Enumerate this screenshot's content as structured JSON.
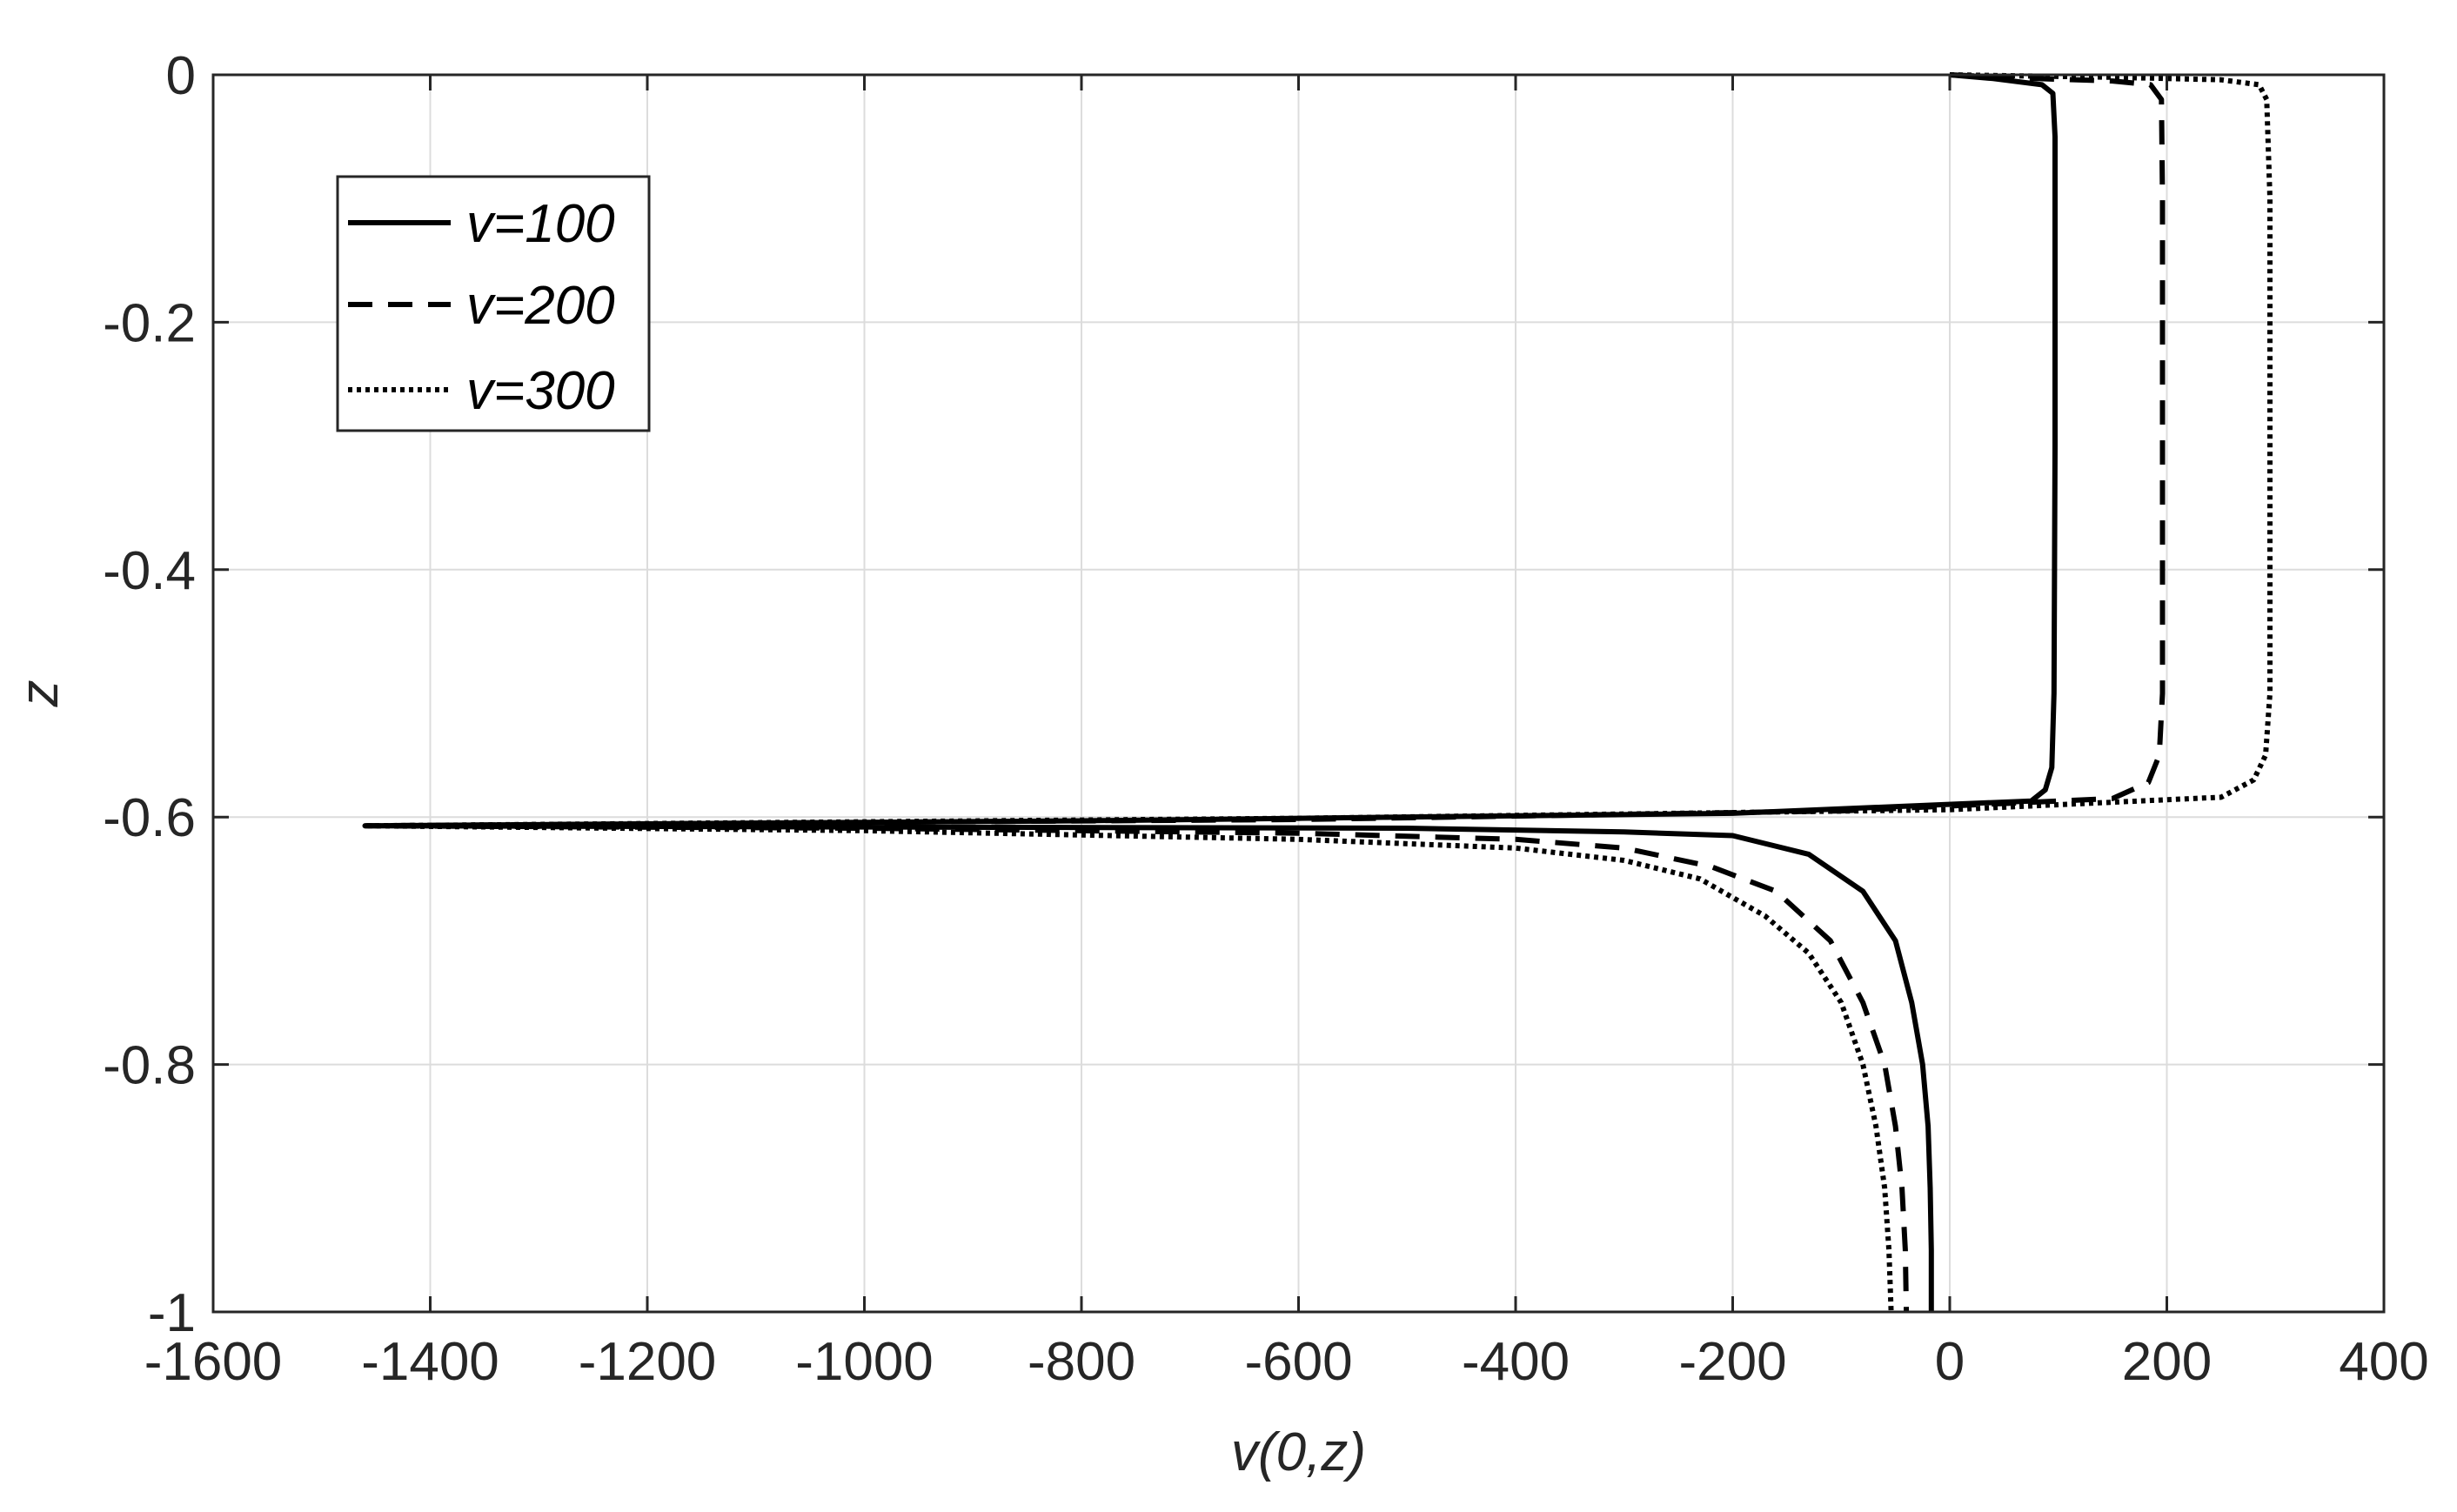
{
  "chart_data": {
    "type": "line",
    "xlabel": "v(0,z)",
    "ylabel": "z",
    "xlim": [
      -1600,
      400
    ],
    "ylim": [
      -1,
      0
    ],
    "xticks": [
      -1600,
      -1400,
      -1200,
      -1000,
      -800,
      -600,
      -400,
      -200,
      0,
      200,
      400
    ],
    "yticks": [
      0,
      -0.2,
      -0.4,
      -0.6,
      -0.8,
      -1
    ],
    "xtick_labels": [
      "-1600",
      "-1400",
      "-1200",
      "-1000",
      "-800",
      "-600",
      "-400",
      "-200",
      "0",
      "200",
      "400"
    ],
    "ytick_labels": [
      "0",
      "-0.2",
      "-0.4",
      "-0.6",
      "-0.8",
      "-1"
    ],
    "grid": true,
    "legend_position": "top-left",
    "series": [
      {
        "name": "v=100",
        "style": "solid",
        "color": "#000000",
        "points": [
          [
            0,
            0
          ],
          [
            40,
            -0.003
          ],
          [
            85,
            -0.008
          ],
          [
            95,
            -0.015
          ],
          [
            97,
            -0.05
          ],
          [
            97,
            -0.3
          ],
          [
            96,
            -0.5
          ],
          [
            94,
            -0.56
          ],
          [
            88,
            -0.578
          ],
          [
            75,
            -0.587
          ],
          [
            -200,
            -0.597
          ],
          [
            -800,
            -0.603
          ],
          [
            -1460,
            -0.607
          ],
          [
            -1000,
            -0.608
          ],
          [
            -500,
            -0.609
          ],
          [
            -300,
            -0.612
          ],
          [
            -200,
            -0.615
          ],
          [
            -130,
            -0.63
          ],
          [
            -80,
            -0.66
          ],
          [
            -50,
            -0.7
          ],
          [
            -35,
            -0.75
          ],
          [
            -25,
            -0.8
          ],
          [
            -20,
            -0.85
          ],
          [
            -18,
            -0.9
          ],
          [
            -17,
            -0.95
          ],
          [
            -17,
            -1.0
          ]
        ]
      },
      {
        "name": "v=200",
        "style": "dashed",
        "color": "#000000",
        "points": [
          [
            0,
            0
          ],
          [
            80,
            -0.003
          ],
          [
            150,
            -0.005
          ],
          [
            185,
            -0.008
          ],
          [
            195,
            -0.02
          ],
          [
            196,
            -0.1
          ],
          [
            196,
            -0.5
          ],
          [
            193,
            -0.55
          ],
          [
            183,
            -0.572
          ],
          [
            150,
            -0.585
          ],
          [
            -100,
            -0.595
          ],
          [
            -600,
            -0.602
          ],
          [
            -1460,
            -0.607
          ],
          [
            -1000,
            -0.609
          ],
          [
            -600,
            -0.613
          ],
          [
            -400,
            -0.618
          ],
          [
            -300,
            -0.625
          ],
          [
            -220,
            -0.64
          ],
          [
            -160,
            -0.66
          ],
          [
            -110,
            -0.7
          ],
          [
            -80,
            -0.75
          ],
          [
            -60,
            -0.8
          ],
          [
            -50,
            -0.85
          ],
          [
            -44,
            -0.9
          ],
          [
            -41,
            -0.95
          ],
          [
            -40,
            -1.0
          ]
        ]
      },
      {
        "name": "v=300",
        "style": "dotted",
        "color": "#000000",
        "points": [
          [
            0,
            0
          ],
          [
            150,
            -0.002
          ],
          [
            250,
            -0.004
          ],
          [
            285,
            -0.008
          ],
          [
            292,
            -0.02
          ],
          [
            295,
            -0.1
          ],
          [
            295,
            -0.5
          ],
          [
            291,
            -0.55
          ],
          [
            280,
            -0.57
          ],
          [
            250,
            -0.584
          ],
          [
            0,
            -0.594
          ],
          [
            -600,
            -0.601
          ],
          [
            -1460,
            -0.607
          ],
          [
            -1000,
            -0.611
          ],
          [
            -600,
            -0.618
          ],
          [
            -400,
            -0.625
          ],
          [
            -300,
            -0.635
          ],
          [
            -230,
            -0.65
          ],
          [
            -170,
            -0.68
          ],
          [
            -130,
            -0.71
          ],
          [
            -100,
            -0.75
          ],
          [
            -80,
            -0.8
          ],
          [
            -68,
            -0.85
          ],
          [
            -60,
            -0.9
          ],
          [
            -56,
            -0.95
          ],
          [
            -54,
            -1.0
          ]
        ]
      }
    ]
  }
}
